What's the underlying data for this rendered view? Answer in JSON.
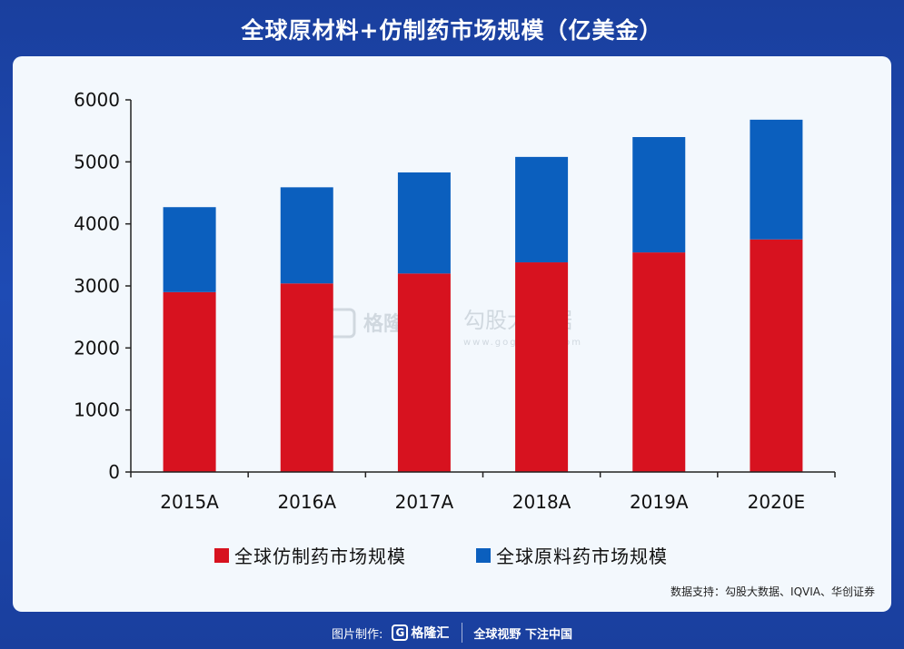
{
  "title": "全球原材料+仿制药市场规模（亿美金）",
  "source": "数据支持：勾股大数据、IQVIA、华创证券",
  "watermark": {
    "left_brand": "格隆汇",
    "right_brand": "勾股大数据",
    "right_url": "www.gogudata.com"
  },
  "footer": {
    "made_by": "图片制作:",
    "brand": "格隆汇",
    "slogan": "全球视野 下注中国"
  },
  "colors": {
    "generic": "#d7121f",
    "api": "#0b5fbe"
  },
  "chart_data": {
    "type": "bar",
    "stacked": true,
    "categories": [
      "2015A",
      "2016A",
      "2017A",
      "2018A",
      "2019A",
      "2020E"
    ],
    "series": [
      {
        "name": "全球仿制药市场规模",
        "values": [
          2900,
          3040,
          3200,
          3380,
          3540,
          3750
        ]
      },
      {
        "name": "全球原料药市场规模",
        "values": [
          1370,
          1550,
          1630,
          1700,
          1860,
          1930
        ]
      }
    ],
    "ylim": [
      0,
      6000
    ],
    "yticks": [
      0,
      1000,
      2000,
      3000,
      4000,
      5000,
      6000
    ],
    "grid": false,
    "legend": "bottom"
  }
}
